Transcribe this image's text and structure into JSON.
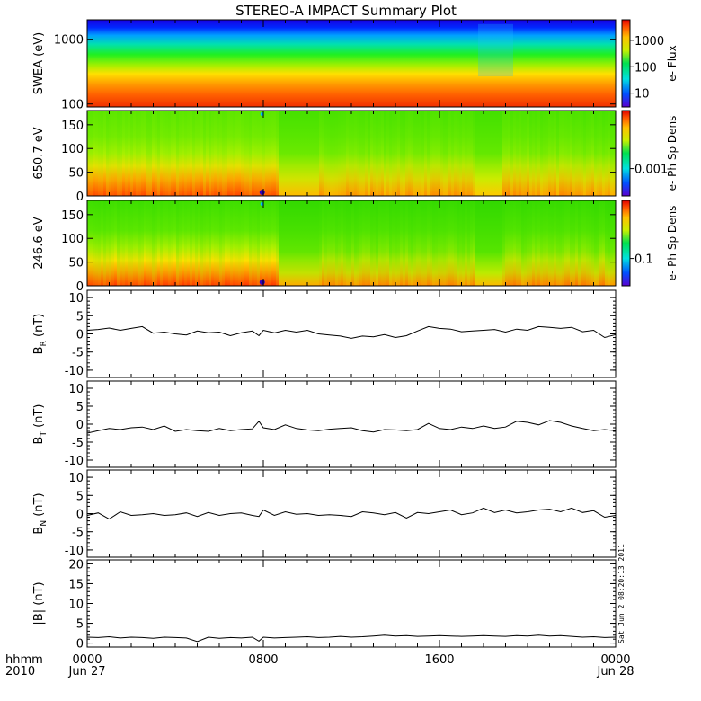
{
  "title": "STEREO-A IMPACT Summary Plot",
  "footer": {
    "left_line1": "hhmm",
    "left_line2": "2010",
    "stamp": "Sat Jun  2 08:20:13 2011"
  },
  "chart_data": [
    {
      "type": "heatmap",
      "panel": "swea",
      "ylabel": "SWEA (eV)",
      "yscale": "log",
      "ylim": [
        90,
        2000
      ],
      "yticks": [
        "1000",
        "100"
      ],
      "ytick_values": [
        1000,
        100
      ],
      "colorbar": {
        "label": "e- Flux",
        "scale": "log",
        "range": [
          3,
          6000
        ],
        "ticks": [
          "1000",
          "100",
          "10"
        ],
        "tick_values": [
          1000,
          100,
          10
        ]
      },
      "features": "flux highest near 100-200 eV, decreasing with energy; dip region near 1900 hhmm"
    },
    {
      "type": "heatmap",
      "panel": "pad650",
      "ylabel": "650.7 eV",
      "ylim": [
        0,
        180
      ],
      "yticks": [
        "150",
        "100",
        "50",
        "0"
      ],
      "ytick_values": [
        150,
        100,
        50,
        0
      ],
      "colorbar": {
        "label": "e- Ph Sp Dens",
        "scale": "log",
        "ticks": [
          "0.001"
        ],
        "tick_values": [
          0.001
        ]
      }
    },
    {
      "type": "heatmap",
      "panel": "pad246",
      "ylabel": "246.6 eV",
      "ylim": [
        0,
        180
      ],
      "yticks": [
        "150",
        "100",
        "50",
        "0"
      ],
      "ytick_values": [
        150,
        100,
        50,
        0
      ],
      "colorbar": {
        "label": "e- Ph Sp Dens",
        "scale": "log",
        "ticks": [
          "0.1"
        ],
        "tick_values": [
          0.1
        ]
      }
    },
    {
      "type": "line",
      "panel": "br",
      "ylabel_main": "B",
      "ylabel_sub": "R",
      "ylabel_unit": " (nT)",
      "ylim": [
        -12,
        12
      ],
      "yticks": [
        "10",
        "5",
        "0",
        "-5",
        "-10"
      ],
      "ytick_values": [
        10,
        5,
        0,
        -5,
        -10
      ],
      "x_hours": [
        0,
        0.5,
        1,
        1.5,
        2,
        2.5,
        3,
        3.5,
        4,
        4.5,
        5,
        5.5,
        6,
        6.5,
        7,
        7.5,
        7.8,
        8,
        8.5,
        9,
        9.5,
        10,
        10.5,
        11,
        11.5,
        12,
        12.5,
        13,
        13.5,
        14,
        14.5,
        15,
        15.5,
        16,
        16.5,
        17,
        17.5,
        18,
        18.5,
        19,
        19.5,
        20,
        20.5,
        21,
        21.5,
        22,
        22.5,
        23,
        23.5,
        24
      ],
      "values": [
        1,
        1.2,
        1.6,
        1.0,
        1.5,
        2.0,
        0.2,
        0.5,
        0.0,
        -0.3,
        0.8,
        0.3,
        0.5,
        -0.5,
        0.3,
        0.8,
        -0.5,
        1.0,
        0.3,
        1.0,
        0.5,
        1.0,
        0.0,
        -0.3,
        -0.6,
        -1.2,
        -0.6,
        -0.8,
        -0.2,
        -1.0,
        -0.5,
        0.8,
        2.0,
        1.5,
        1.3,
        0.6,
        0.8,
        1.0,
        1.2,
        0.5,
        1.3,
        1.0,
        2.0,
        1.8,
        1.5,
        1.8,
        0.6,
        1.0,
        -1.0,
        -0.2
      ]
    },
    {
      "type": "line",
      "panel": "bt",
      "ylabel_main": "B",
      "ylabel_sub": "T",
      "ylabel_unit": " (nT)",
      "ylim": [
        -12,
        12
      ],
      "yticks": [
        "10",
        "5",
        "0",
        "-5",
        "-10"
      ],
      "ytick_values": [
        10,
        5,
        0,
        -5,
        -10
      ],
      "x_hours": [
        0,
        0.5,
        1,
        1.5,
        2,
        2.5,
        3,
        3.5,
        4,
        4.5,
        5,
        5.5,
        6,
        6.5,
        7,
        7.5,
        7.8,
        8,
        8.5,
        9,
        9.5,
        10,
        10.5,
        11,
        11.5,
        12,
        12.5,
        13,
        13.5,
        14,
        14.5,
        15,
        15.5,
        16,
        16.5,
        17,
        17.5,
        18,
        18.5,
        19,
        19.5,
        20,
        20.5,
        21,
        21.5,
        22,
        22.5,
        23,
        23.5,
        24
      ],
      "values": [
        -2.5,
        -1.8,
        -1.2,
        -1.5,
        -1.0,
        -0.8,
        -1.5,
        -0.5,
        -2.0,
        -1.5,
        -1.8,
        -2.0,
        -1.2,
        -1.8,
        -1.5,
        -1.3,
        0.8,
        -1.0,
        -1.5,
        -0.2,
        -1.2,
        -1.6,
        -1.8,
        -1.4,
        -1.2,
        -1.0,
        -1.8,
        -2.2,
        -1.5,
        -1.6,
        -1.8,
        -1.5,
        0.2,
        -1.2,
        -1.5,
        -0.8,
        -1.2,
        -0.5,
        -1.2,
        -0.8,
        0.8,
        0.5,
        -0.2,
        1.0,
        0.5,
        -0.5,
        -1.2,
        -1.8,
        -1.5,
        -1.8
      ]
    },
    {
      "type": "line",
      "panel": "bn",
      "ylabel_main": "B",
      "ylabel_sub": "N",
      "ylabel_unit": " (nT)",
      "ylim": [
        -12,
        12
      ],
      "yticks": [
        "10",
        "5",
        "0",
        "-5",
        "-10"
      ],
      "ytick_values": [
        10,
        5,
        0,
        -5,
        -10
      ],
      "x_hours": [
        0,
        0.5,
        1,
        1.5,
        2,
        2.5,
        3,
        3.5,
        4,
        4.5,
        5,
        5.5,
        6,
        6.5,
        7,
        7.5,
        7.8,
        8,
        8.5,
        9,
        9.5,
        10,
        10.5,
        11,
        11.5,
        12,
        12.5,
        13,
        13.5,
        14,
        14.5,
        15,
        15.5,
        16,
        16.5,
        17,
        17.5,
        18,
        18.5,
        19,
        19.5,
        20,
        20.5,
        21,
        21.5,
        22,
        22.5,
        23,
        23.5,
        24
      ],
      "values": [
        -0.5,
        0.2,
        -1.5,
        0.5,
        -0.5,
        -0.3,
        0.0,
        -0.5,
        -0.3,
        0.2,
        -0.8,
        0.3,
        -0.5,
        0.0,
        0.2,
        -0.5,
        -0.8,
        1.0,
        -0.5,
        0.5,
        -0.2,
        0.0,
        -0.5,
        -0.3,
        -0.5,
        -0.8,
        0.5,
        0.2,
        -0.3,
        0.3,
        -1.2,
        0.3,
        0.0,
        0.5,
        1.0,
        -0.3,
        0.2,
        1.5,
        0.3,
        1.0,
        0.2,
        0.5,
        1.0,
        1.2,
        0.5,
        1.5,
        0.3,
        0.8,
        -1.0,
        -0.5
      ]
    },
    {
      "type": "line",
      "panel": "bmag",
      "ylabel_main": "|B| (nT)",
      "ylim": [
        -1,
        21
      ],
      "yticks": [
        "20",
        "15",
        "10",
        "5",
        "0"
      ],
      "ytick_values": [
        20,
        15,
        10,
        5,
        0
      ],
      "x_hours": [
        0,
        0.5,
        1,
        1.5,
        2,
        2.5,
        3,
        3.5,
        4,
        4.5,
        5,
        5.5,
        6,
        6.5,
        7,
        7.5,
        7.8,
        8,
        8.5,
        9,
        9.5,
        10,
        10.5,
        11,
        11.5,
        12,
        12.5,
        13,
        13.5,
        14,
        14.5,
        15,
        15.5,
        16,
        16.5,
        17,
        17.5,
        18,
        18.5,
        19,
        19.5,
        20,
        20.5,
        21,
        21.5,
        22,
        22.5,
        23,
        23.5,
        24
      ],
      "values": [
        1.5,
        1.4,
        1.6,
        1.3,
        1.5,
        1.4,
        1.2,
        1.5,
        1.4,
        1.3,
        0.4,
        1.5,
        1.2,
        1.4,
        1.3,
        1.5,
        0.5,
        1.5,
        1.3,
        1.4,
        1.5,
        1.6,
        1.4,
        1.5,
        1.7,
        1.5,
        1.6,
        1.8,
        2.0,
        1.8,
        1.9,
        1.7,
        1.8,
        1.9,
        1.8,
        1.7,
        1.8,
        1.9,
        1.8,
        1.7,
        1.9,
        1.8,
        2.0,
        1.8,
        1.9,
        1.7,
        1.5,
        1.6,
        1.4,
        1.5
      ]
    }
  ],
  "x_axis": {
    "range_hours": [
      0,
      24
    ],
    "ticks": [
      {
        "hour": 0,
        "line1": "0000",
        "line2": "Jun 27"
      },
      {
        "hour": 8,
        "line1": "0800",
        "line2": ""
      },
      {
        "hour": 16,
        "line1": "1600",
        "line2": ""
      },
      {
        "hour": 24,
        "line1": "0000",
        "line2": "Jun 28"
      }
    ]
  }
}
